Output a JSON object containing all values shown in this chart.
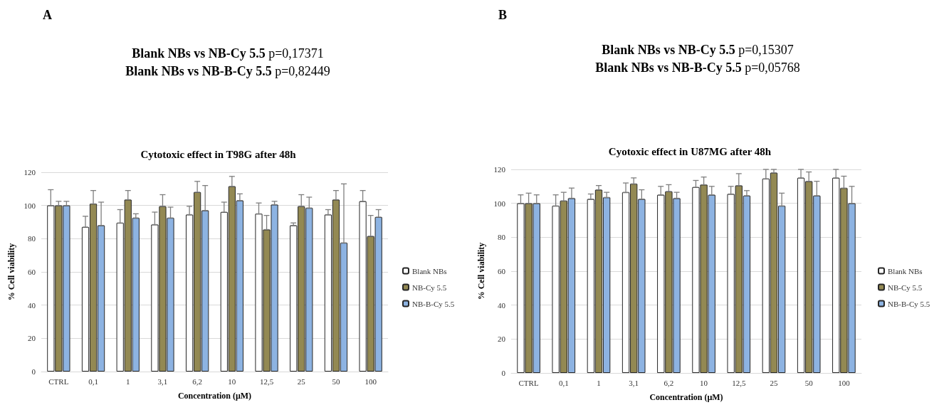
{
  "chart_data": [
    {
      "type": "bar",
      "title": "Cytotoxic effect in T98G after 48h",
      "xlabel": "Concentration (µM)",
      "ylabel": "% Cell viability",
      "categories": [
        "CTRL",
        "0,1",
        "1",
        "3,1",
        "6,2",
        "10",
        "12,5",
        "25",
        "50",
        "100"
      ],
      "series": [
        {
          "name": "Blank NBs",
          "color": "#ffffff",
          "values": [
            100,
            87,
            89.5,
            88.5,
            94.5,
            96,
            95,
            88,
            94.5,
            102.5
          ],
          "errors": [
            [
              100,
              109.5
            ],
            [
              87,
              93.5
            ],
            [
              89.5,
              97.5
            ],
            [
              88.5,
              96
            ],
            [
              94.5,
              99.5
            ],
            [
              96,
              102
            ],
            [
              95,
              101.5
            ],
            [
              88,
              89.5
            ],
            [
              94.5,
              97.5
            ],
            [
              102.5,
              109
            ]
          ]
        },
        {
          "name": "NB-Cy 5.5",
          "color": "#938953",
          "values": [
            100,
            101,
            103.5,
            99.5,
            108,
            111.5,
            85.5,
            99.5,
            103.5,
            81.5
          ],
          "errors": [
            [
              100,
              102.5
            ],
            [
              101,
              109
            ],
            [
              103.5,
              109
            ],
            [
              99.5,
              106.5
            ],
            [
              108,
              114.5
            ],
            [
              111.5,
              117.5
            ],
            [
              85.5,
              94
            ],
            [
              99.5,
              106.5
            ],
            [
              103.5,
              109
            ],
            [
              81.5,
              94
            ]
          ]
        },
        {
          "name": "NB-B-Cy 5.5",
          "color": "#8db3e2",
          "values": [
            100,
            88,
            92.5,
            92.5,
            97,
            103,
            100.5,
            98.5,
            77.5,
            93
          ],
          "errors": [
            [
              100,
              102.5
            ],
            [
              88,
              102
            ],
            [
              92.5,
              95
            ],
            [
              92.5,
              99
            ],
            [
              97,
              112
            ],
            [
              103,
              107
            ],
            [
              100.5,
              102.5
            ],
            [
              98.5,
              105
            ],
            [
              77.5,
              113
            ],
            [
              93,
              97.5
            ]
          ]
        }
      ],
      "ylim": [
        0,
        120
      ],
      "yticks": [
        0,
        20,
        40,
        60,
        80,
        100,
        120
      ],
      "grid": "y",
      "legend": "right",
      "annotations": [
        "A",
        "Blank NBs vs NB-Cy 5.5 p=0,17371",
        "Blank NBs vs NB-B-Cy 5.5 p=0,82449"
      ]
    },
    {
      "type": "bar",
      "title": "Cyotoxic effect in U87MG after 48h",
      "xlabel": "Concentration (µM)",
      "ylabel": "% Cell viability",
      "categories": [
        "CTRL",
        "0,1",
        "1",
        "3,1",
        "6,2",
        "10",
        "12,5",
        "25",
        "50",
        "100"
      ],
      "series": [
        {
          "name": "Blank NBs",
          "color": "#ffffff",
          "values": [
            100,
            98.5,
            102.5,
            106.5,
            105,
            109.5,
            105.5,
            114.5,
            115,
            115
          ],
          "errors": [
            [
              100,
              105
            ],
            [
              98.5,
              105
            ],
            [
              102.5,
              105.5
            ],
            [
              106.5,
              112
            ],
            [
              105,
              110
            ],
            [
              109.5,
              113.5
            ],
            [
              105.5,
              110
            ],
            [
              114.5,
              120
            ],
            [
              115,
              120
            ],
            [
              115,
              120
            ]
          ]
        },
        {
          "name": "NB-Cy 5.5",
          "color": "#938953",
          "values": [
            100,
            101.5,
            108,
            111.5,
            107,
            111,
            110.5,
            118,
            113,
            109
          ],
          "errors": [
            [
              100,
              106
            ],
            [
              101.5,
              106.5
            ],
            [
              108,
              110.5
            ],
            [
              111.5,
              115
            ],
            [
              107,
              111
            ],
            [
              111,
              115.5
            ],
            [
              110.5,
              117.5
            ],
            [
              118,
              120
            ],
            [
              113,
              118.5
            ],
            [
              109,
              116
            ]
          ]
        },
        {
          "name": "NB-B-Cy 5.5",
          "color": "#8db3e2",
          "values": [
            100,
            103,
            103.5,
            102.5,
            103,
            105,
            104.5,
            98.5,
            104.5,
            100
          ],
          "errors": [
            [
              100,
              105
            ],
            [
              103,
              109
            ],
            [
              103.5,
              106.5
            ],
            [
              102.5,
              108
            ],
            [
              103,
              106.5
            ],
            [
              105,
              110
            ],
            [
              104.5,
              107.5
            ],
            [
              98.5,
              106
            ],
            [
              104.5,
              113
            ],
            [
              100,
              110
            ]
          ]
        }
      ],
      "ylim": [
        0,
        120
      ],
      "yticks": [
        0,
        20,
        40,
        60,
        80,
        100,
        120
      ],
      "grid": "y",
      "legend": "right",
      "annotations": [
        "B",
        "Blank NBs vs NB-Cy 5.5 p=0,15307",
        "Blank NBs vs NB-B-Cy 5.5 p=0,05768"
      ]
    }
  ]
}
